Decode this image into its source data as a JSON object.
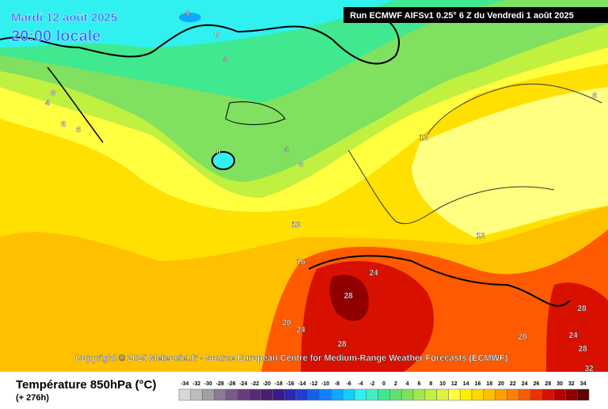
{
  "header": {
    "date": "Mardi 12 août 2025",
    "time": "20:00 locale",
    "run": "Run ECMWF AIFSv1 0.25° 6 Z du Vendredi 1 août 2025"
  },
  "map": {
    "copyright": "Copyright © 2025 Meteociel.fr - Source European Centre for Medium-Range Weather Forecasts (ECMWF)",
    "contour_labels": [
      -4,
      0,
      4,
      8,
      4,
      8,
      8,
      0,
      4,
      8,
      12,
      8,
      12,
      12,
      16,
      24,
      28,
      20,
      24,
      28,
      20,
      28,
      24,
      28,
      32
    ]
  },
  "legend": {
    "title": "Température 850hPa (°C)",
    "lead": "(+ 276h)",
    "scale": [
      -34,
      -32,
      -30,
      -28,
      -26,
      -24,
      -22,
      -20,
      -18,
      -16,
      -14,
      -12,
      -10,
      -8,
      -6,
      -4,
      -2,
      0,
      2,
      4,
      6,
      8,
      10,
      12,
      14,
      16,
      18,
      20,
      22,
      24,
      26,
      28,
      30,
      32,
      34
    ],
    "colors": [
      "#d8d8d8",
      "#bdbdbd",
      "#a0a0a0",
      "#8a7a94",
      "#7a5a8a",
      "#6a3c7e",
      "#5a2a78",
      "#4a1f70",
      "#3a1a8a",
      "#2a2ab0",
      "#2040d0",
      "#1560e8",
      "#1080ff",
      "#10a8ff",
      "#10d0ff",
      "#30f0f0",
      "#40f0c0",
      "#40e890",
      "#60e070",
      "#80e060",
      "#a0e850",
      "#c0f040",
      "#e0f040",
      "#ffff40",
      "#fff000",
      "#ffd800",
      "#ffc000",
      "#ffa000",
      "#ff8000",
      "#ff5a00",
      "#f03000",
      "#d81000",
      "#b80000",
      "#900000",
      "#600000"
    ]
  }
}
